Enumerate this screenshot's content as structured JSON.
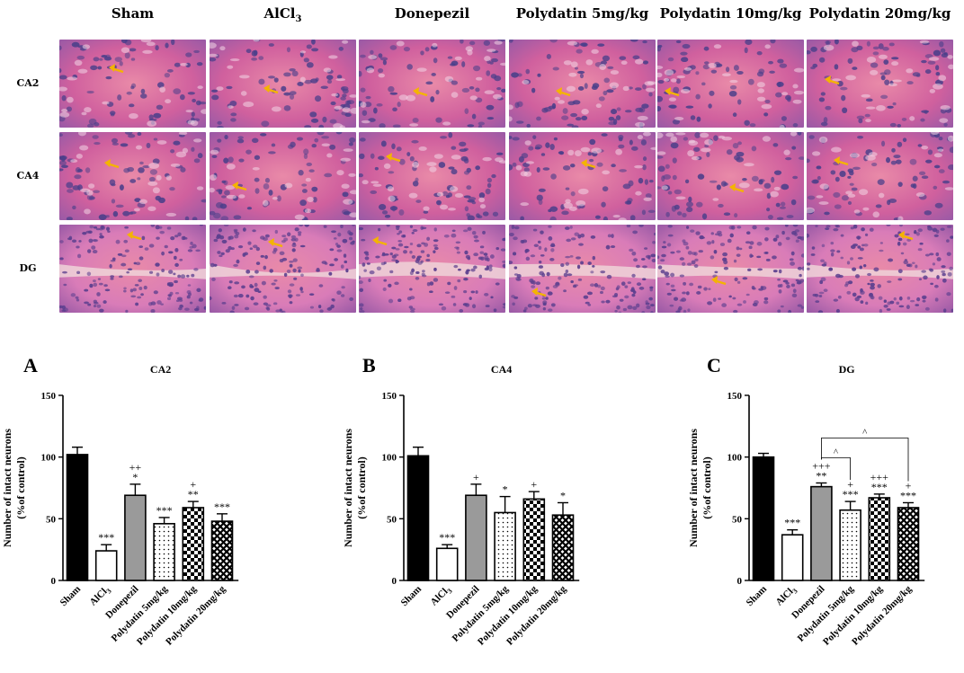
{
  "micrographs": {
    "columns": [
      "Sham",
      "AlCl3",
      "Donepezil",
      "Polydatin 5mg/kg",
      "Polydatin 10mg/kg",
      "Polydatin 20mg/kg"
    ],
    "column_display": [
      {
        "main": "Sham",
        "sub": ""
      },
      {
        "main": "AlCl",
        "sub": "3"
      },
      {
        "main": "Donepezil",
        "sub": ""
      },
      {
        "main": "Polydatin 5mg/kg",
        "sub": ""
      },
      {
        "main": "Polydatin 10mg/kg",
        "sub": ""
      },
      {
        "main": "Polydatin 20mg/kg",
        "sub": ""
      }
    ],
    "rows": [
      "CA2",
      "CA4",
      "DG"
    ],
    "stain_colors": {
      "background": "#c05a9a",
      "nuclei": "#4a3f8a",
      "arrow": "#f4b400"
    }
  },
  "chart_data": [
    {
      "panel": "A",
      "type": "bar",
      "title": "CA2",
      "ylabel": "Number of intact neurons\n(%of control)",
      "ylim": [
        0,
        150
      ],
      "yticks": [
        0,
        50,
        100,
        150
      ],
      "categories": [
        "Sham",
        "AlCl3",
        "Donepezil",
        "Polydatin 5mg/kg",
        "Polydatin 10mg/kg",
        "Polydatin 20mg/kg"
      ],
      "values": [
        102,
        24,
        69,
        46,
        59,
        48
      ],
      "errors": [
        6,
        5,
        9,
        5,
        5,
        6
      ],
      "fills": [
        "solid-black",
        "white",
        "gray",
        "dots",
        "checker",
        "crosshatch"
      ],
      "annotations": [
        [],
        [
          "***"
        ],
        [
          "*",
          "++"
        ],
        [
          "***"
        ],
        [
          "**",
          "+"
        ],
        [
          "***"
        ]
      ],
      "brackets": []
    },
    {
      "panel": "B",
      "type": "bar",
      "title": "CA4",
      "ylabel": "Number of intact neurons\n(%of control)",
      "ylim": [
        0,
        150
      ],
      "yticks": [
        0,
        50,
        100,
        150
      ],
      "categories": [
        "Sham",
        "AlCl3",
        "Donepezil",
        "Polydatin 5mg/kg",
        "Polydatin 10mg/kg",
        "Polydatin 20mg/kg"
      ],
      "values": [
        101,
        26,
        69,
        55,
        66,
        53
      ],
      "errors": [
        7,
        3,
        9,
        13,
        6,
        10
      ],
      "fills": [
        "solid-black",
        "white",
        "gray",
        "dots",
        "checker",
        "crosshatch"
      ],
      "annotations": [
        [],
        [
          "***"
        ],
        [
          "+"
        ],
        [
          "*"
        ],
        [
          "+"
        ],
        [
          "*"
        ]
      ],
      "brackets": []
    },
    {
      "panel": "C",
      "type": "bar",
      "title": "DG",
      "ylabel": "Number of intact neurons\n(%of control)",
      "ylim": [
        0,
        150
      ],
      "yticks": [
        0,
        50,
        100,
        150
      ],
      "categories": [
        "Sham",
        "AlCl3",
        "Donepezil",
        "Polydatin 5mg/kg",
        "Polydatin 10mg/kg",
        "Polydatin 20mg/kg"
      ],
      "values": [
        100,
        37,
        76,
        57,
        67,
        59
      ],
      "errors": [
        3,
        4,
        3,
        7,
        3,
        4
      ],
      "fills": [
        "solid-black",
        "white",
        "gray",
        "dots",
        "checker",
        "crosshatch"
      ],
      "annotations": [
        [],
        [
          "***"
        ],
        [
          "**",
          "+++"
        ],
        [
          "***",
          "+"
        ],
        [
          "***",
          "+++"
        ],
        [
          "***",
          "+"
        ]
      ],
      "brackets": [
        {
          "from": 2,
          "to": 3,
          "label": "^",
          "level": 1
        },
        {
          "from": 2,
          "to": 5,
          "label": "^",
          "level": 2
        }
      ]
    }
  ]
}
